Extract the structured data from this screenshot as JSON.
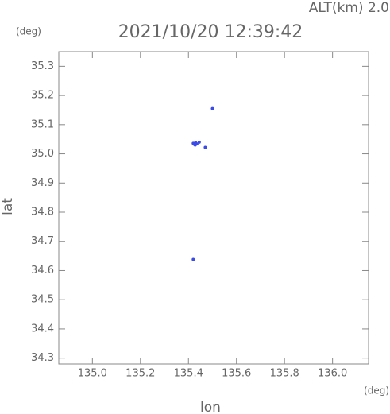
{
  "chart_data": {
    "type": "scatter",
    "title": "2021/10/20 12:39:42",
    "subtitle": "ALT(km) 2.0",
    "xlabel": "lon",
    "ylabel": "lat",
    "x_unit": "(deg)",
    "y_unit": "(deg)",
    "xlim": [
      134.86,
      136.15
    ],
    "ylim": [
      34.28,
      35.35
    ],
    "xticks": [
      {
        "value": 135.0,
        "label": "135.0"
      },
      135.2,
      135.4,
      135.6,
      135.8,
      {
        "value": 136.0,
        "label": "136.0"
      }
    ],
    "yticks": [
      34.3,
      34.4,
      34.5,
      34.6,
      34.7,
      34.8,
      34.9,
      {
        "value": 35.0,
        "label": "35.0"
      },
      35.1,
      35.2,
      35.3
    ],
    "grid": false,
    "series": [
      {
        "color": "#3b4be8",
        "x": [
          135.5,
          135.42,
          135.425,
          135.43,
          135.435,
          135.428,
          135.445,
          135.47,
          135.42
        ],
        "y": [
          35.155,
          35.036,
          35.032,
          35.038,
          35.034,
          35.03,
          35.04,
          35.022,
          34.638
        ]
      }
    ]
  }
}
